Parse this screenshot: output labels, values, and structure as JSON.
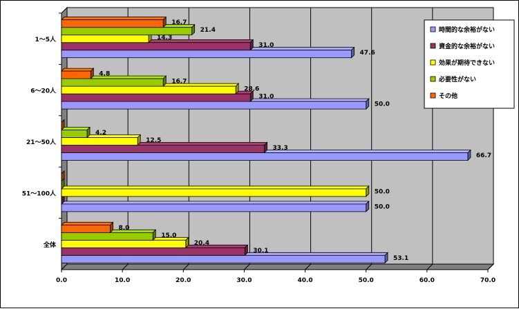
{
  "chart_data": {
    "type": "bar",
    "orientation": "horizontal",
    "categories": [
      "1～5人",
      "6～20人",
      "21～50人",
      "51～100人",
      "全体"
    ],
    "series": [
      {
        "name": "時間的な余裕がない",
        "color": "#9999ff",
        "values": [
          47.6,
          50.0,
          66.7,
          50.0,
          53.1
        ]
      },
      {
        "name": "資金的な余裕がない",
        "color": "#993366",
        "values": [
          31.0,
          31.0,
          33.3,
          0.0,
          30.1
        ]
      },
      {
        "name": "効果が期待できない",
        "color": "#ffff00",
        "values": [
          14.3,
          28.6,
          12.5,
          50.0,
          20.4
        ]
      },
      {
        "name": "必要性がない",
        "color": "#99cc00",
        "values": [
          21.4,
          16.7,
          4.2,
          0.0,
          15.0
        ]
      },
      {
        "name": "その他",
        "color": "#ff6600",
        "values": [
          16.7,
          4.8,
          0.0,
          0.0,
          8.0
        ]
      }
    ],
    "data_labels": [
      [
        "47.6",
        "50.0",
        "66.7",
        "50.0",
        "53.1"
      ],
      [
        "31.0",
        "31.0",
        "33.3",
        "",
        "30.1"
      ],
      [
        "14.3",
        "28.6",
        "12.5",
        "50.0",
        "20.4"
      ],
      [
        "21.4",
        "16.7",
        "4.2",
        "",
        "15.0"
      ],
      [
        "16.7",
        "4.8",
        "",
        "",
        "8.0"
      ]
    ],
    "x_ticks": [
      "0.0",
      "10.0",
      "20.0",
      "30.0",
      "40.0",
      "50.0",
      "60.0",
      "70.0"
    ],
    "xlim": [
      0,
      70
    ],
    "grid": true,
    "legend_position": "top-right",
    "plot_wall_color": "#c0c0c0"
  }
}
